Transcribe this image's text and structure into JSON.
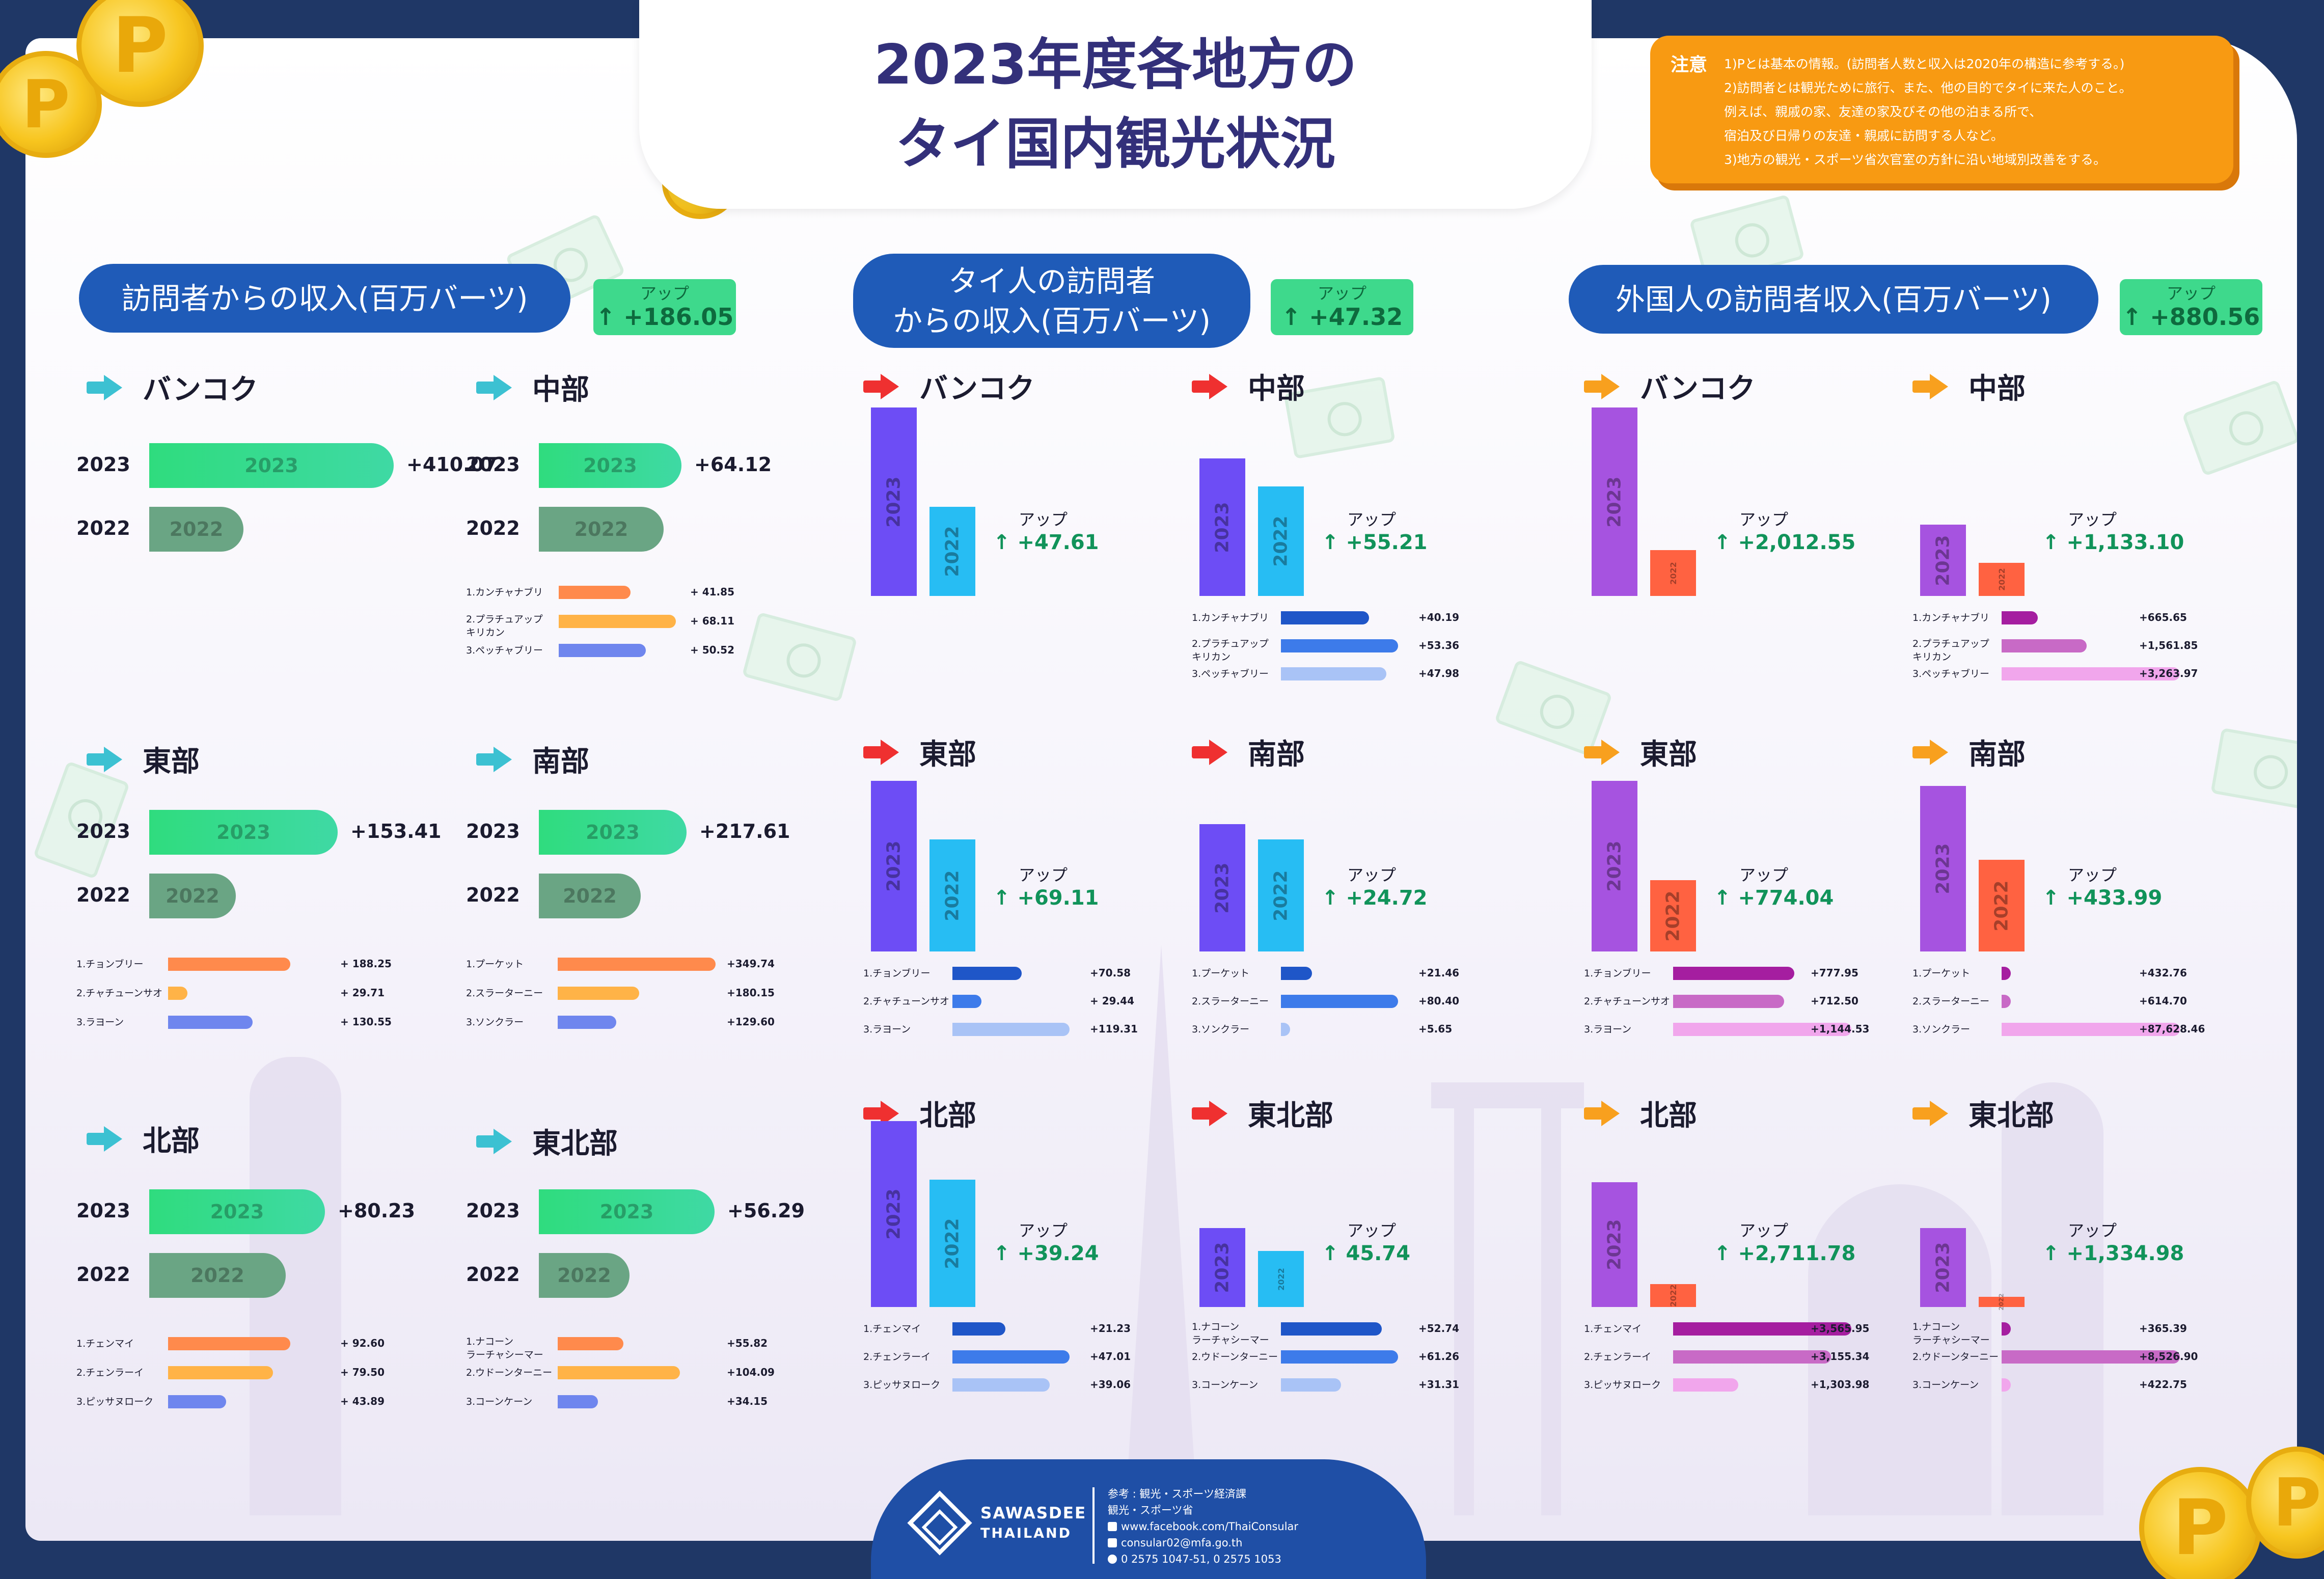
{
  "title_lines": [
    "2023年度各地方の",
    "タイ国内観光状況"
  ],
  "coin_glyph": "P",
  "note": {
    "label": "注意",
    "lines": [
      "1)Pとは基本の情報。(訪問者人数と収入は2020年の構造に参考する。)",
      "2)訪問者とは観光ために旅行、また、他の目的でタイに来た人のこと。",
      "例えば、親戚の家、友達の家及びその他の泊まる所で、",
      "宿泊及び日帰りの友達・親戚に訪問する人など。",
      "3)地方の観光・スポーツ省次官室の方針に沿い地域別改善をする。"
    ]
  },
  "colors": {
    "bar2023_h": "#2fdc7e",
    "bar2022_h": "#6aa584",
    "prov_h": [
      "#ff8a4c",
      "#ffb347",
      "#6f86ee"
    ],
    "bar2023_thai": "#6d4df5",
    "bar2022_thai": "#27bdf3",
    "prov_thai": [
      "#1f56c8",
      "#3d7bea",
      "#a9c3f6"
    ],
    "bar2023_foreign": "#a653e0",
    "bar2022_foreign": "#ff6241",
    "prov_foreign": [
      "#a51ea0",
      "#c86ac6",
      "#f1a6ec"
    ],
    "arrow_total": "#3cc1d2",
    "arrow_thai": "#ef3030",
    "arrow_foreign": "#f8a01e"
  },
  "up_word": "アップ",
  "up_arrow": "↑",
  "chart_data": [
    {
      "type": "bar",
      "orientation": "horizontal",
      "title": "訪問者からの収入(百万バーツ)",
      "total_change": "+186.05",
      "regions": [
        {
          "name": "バンコク",
          "years": [
            "2023",
            "2022"
          ],
          "bar_labels": [
            "2023",
            "2022"
          ],
          "change": "+410.07",
          "provinces": []
        },
        {
          "name": "中部",
          "years": [
            "2023",
            "2022"
          ],
          "bar_labels": [
            "2023",
            "2022"
          ],
          "change": "+64.12",
          "provinces": [
            {
              "name": "1.カンチャナブリ",
              "value": 41.85,
              "label": "+ 41.85"
            },
            {
              "name": "2.プラチュアップ キリカン",
              "value": 68.11,
              "label": "+ 68.11"
            },
            {
              "name": "3.ペッチャブリー",
              "value": 50.52,
              "label": "+ 50.52"
            }
          ]
        },
        {
          "name": "東部",
          "years": [
            "2023",
            "2022"
          ],
          "bar_labels": [
            "2023",
            "2022"
          ],
          "change": "+153.41",
          "provinces": [
            {
              "name": "1.チョンブリー",
              "value": 188.25,
              "label": "+ 188.25"
            },
            {
              "name": "2.チャチューンサオ",
              "value": 29.71,
              "label": "+ 29.71"
            },
            {
              "name": "3.ラヨーン",
              "value": 130.55,
              "label": "+ 130.55"
            }
          ]
        },
        {
          "name": "南部",
          "years": [
            "2023",
            "2022"
          ],
          "bar_labels": [
            "2023",
            "2022"
          ],
          "change": "+217.61",
          "provinces": [
            {
              "name": "1.プーケット",
              "value": 349.74,
              "label": "+349.74"
            },
            {
              "name": "2.スラーターニー",
              "value": 180.15,
              "label": "+180.15"
            },
            {
              "name": "3.ソンクラー",
              "value": 129.6,
              "label": "+129.60"
            }
          ]
        },
        {
          "name": "北部",
          "years": [
            "2023",
            "2022"
          ],
          "bar_labels": [
            "2023",
            "2022"
          ],
          "change": "+80.23",
          "provinces": [
            {
              "name": "1.チェンマイ",
              "value": 92.6,
              "label": "+ 92.60"
            },
            {
              "name": "2.チェンラーイ",
              "value": 79.5,
              "label": "+ 79.50"
            },
            {
              "name": "3.ピッサヌローク",
              "value": 43.89,
              "label": "+ 43.89"
            }
          ]
        },
        {
          "name": "東北部",
          "years": [
            "2023",
            "2022"
          ],
          "bar_labels": [
            "2023",
            "2022"
          ],
          "change": "+56.29",
          "provinces": [
            {
              "name": "1.ナコーン ラーチャシーマー",
              "value": 55.82,
              "label": "+55.82"
            },
            {
              "name": "2.ウドーンターニー",
              "value": 104.09,
              "label": "+104.09"
            },
            {
              "name": "3.コーンケーン",
              "value": 34.15,
              "label": "+34.15"
            }
          ]
        }
      ]
    },
    {
      "type": "bar",
      "orientation": "vertical",
      "title": "タイ人の訪問者 からの収入(百万バーツ)",
      "total_change": "+47.32",
      "regions": [
        {
          "name": "バンコク",
          "bar_labels": [
            "2023",
            "2022"
          ],
          "change": "+47.61",
          "provinces": []
        },
        {
          "name": "中部",
          "bar_labels": [
            "2023",
            "2022"
          ],
          "change": "+55.21",
          "provinces": [
            {
              "name": "1.カンチャナブリ",
              "value": 40.19,
              "label": "+40.19"
            },
            {
              "name": "2.プラチュアップ キリカン",
              "value": 53.36,
              "label": "+53.36"
            },
            {
              "name": "3.ペッチャブリー",
              "value": 47.98,
              "label": "+47.98"
            }
          ]
        },
        {
          "name": "東部",
          "bar_labels": [
            "2023",
            "2022"
          ],
          "change": "+69.11",
          "provinces": [
            {
              "name": "1.チョンブリー",
              "value": 70.58,
              "label": "+70.58"
            },
            {
              "name": "2.チャチューンサオ",
              "value": 29.44,
              "label": "+ 29.44"
            },
            {
              "name": "3.ラヨーン",
              "value": 119.31,
              "label": "+119.31"
            }
          ]
        },
        {
          "name": "南部",
          "bar_labels": [
            "2023",
            "2022"
          ],
          "change": "+24.72",
          "provinces": [
            {
              "name": "1.プーケット",
              "value": 21.46,
              "label": "+21.46"
            },
            {
              "name": "2.スラーターニー",
              "value": 80.4,
              "label": "+80.40"
            },
            {
              "name": "3.ソンクラー",
              "value": 5.65,
              "label": "+5.65"
            }
          ]
        },
        {
          "name": "北部",
          "bar_labels": [
            "2023",
            "2022"
          ],
          "change": "+39.24",
          "provinces": [
            {
              "name": "1.チェンマイ",
              "value": 21.23,
              "label": "+21.23"
            },
            {
              "name": "2.チェンラーイ",
              "value": 47.01,
              "label": "+47.01"
            },
            {
              "name": "3.ピッサヌローク",
              "value": 39.06,
              "label": "+39.06"
            }
          ]
        },
        {
          "name": "東北部",
          "bar_labels": [
            "2023",
            "2022"
          ],
          "change": "45.74",
          "provinces": [
            {
              "name": "1.ナコーン ラーチャシーマー",
              "value": 52.74,
              "label": "+52.74"
            },
            {
              "name": "2.ウドーンターニー",
              "value": 61.26,
              "label": "+61.26"
            },
            {
              "name": "3.コーンケーン",
              "value": 31.31,
              "label": "+31.31"
            }
          ]
        }
      ]
    },
    {
      "type": "bar",
      "orientation": "vertical",
      "title": "外国人の訪問者収入(百万バーツ)",
      "total_change": "+880.56",
      "regions": [
        {
          "name": "バンコク",
          "bar_labels": [
            "2023",
            "2022"
          ],
          "change": "+2,012.55",
          "provinces": []
        },
        {
          "name": "中部",
          "bar_labels": [
            "2023",
            "2022"
          ],
          "change": "+1,133.10",
          "provinces": [
            {
              "name": "1.カンチャナブリ",
              "value": 665.65,
              "label": "+665.65"
            },
            {
              "name": "2.プラチュアップ キリカン",
              "value": 1561.85,
              "label": "+1,561.85"
            },
            {
              "name": "3.ペッチャブリー",
              "value": 3263.97,
              "label": "+3,263.97"
            }
          ]
        },
        {
          "name": "東部",
          "bar_labels": [
            "2023",
            "2022"
          ],
          "change": "+774.04",
          "provinces": [
            {
              "name": "1.チョンブリー",
              "value": 777.95,
              "label": "+777.95"
            },
            {
              "name": "2.チャチューンサオ",
              "value": 712.5,
              "label": "+712.50"
            },
            {
              "name": "3.ラヨーン",
              "value": 1144.53,
              "label": "+1,144.53"
            }
          ]
        },
        {
          "name": "南部",
          "bar_labels": [
            "2023",
            "2022"
          ],
          "change": "+433.99",
          "provinces": [
            {
              "name": "1.プーケット",
              "value": 432.76,
              "label": "+432.76"
            },
            {
              "name": "2.スラーターニー",
              "value": 614.7,
              "label": "+614.70"
            },
            {
              "name": "3.ソンクラー",
              "value": 87628.46,
              "label": "+87,628.46"
            }
          ]
        },
        {
          "name": "北部",
          "bar_labels": [
            "2023",
            "2022"
          ],
          "change": "+2,711.78",
          "provinces": [
            {
              "name": "1.チェンマイ",
              "value": 3565.95,
              "label": "+3,565.95"
            },
            {
              "name": "2.チェンラーイ",
              "value": 3155.34,
              "label": "+3,155.34"
            },
            {
              "name": "3.ピッサヌローク",
              "value": 1303.98,
              "label": "+1,303.98"
            }
          ]
        },
        {
          "name": "東北部",
          "bar_labels": [
            "2023",
            "2022"
          ],
          "change": "+1,334.98",
          "provinces": [
            {
              "name": "1.ナコーン ラーチャシーマー",
              "value": 365.39,
              "label": "+365.39"
            },
            {
              "name": "2.ウドーンターニー",
              "value": 8526.9,
              "label": "+8,526.90"
            },
            {
              "name": "3.コーンケーン",
              "value": 422.75,
              "label": "+422.75"
            }
          ]
        }
      ]
    }
  ],
  "footer": {
    "logo_line1": "SAWASDEE",
    "logo_line2": "THAILAND",
    "lines": [
      "参考 : 観光・スポーツ経済課",
      "観光・スポーツ省",
      "www.facebook.com/ThaiConsular",
      "consular02@mfa.go.th",
      "0 2575 1047-51, 0 2575 1053"
    ]
  }
}
